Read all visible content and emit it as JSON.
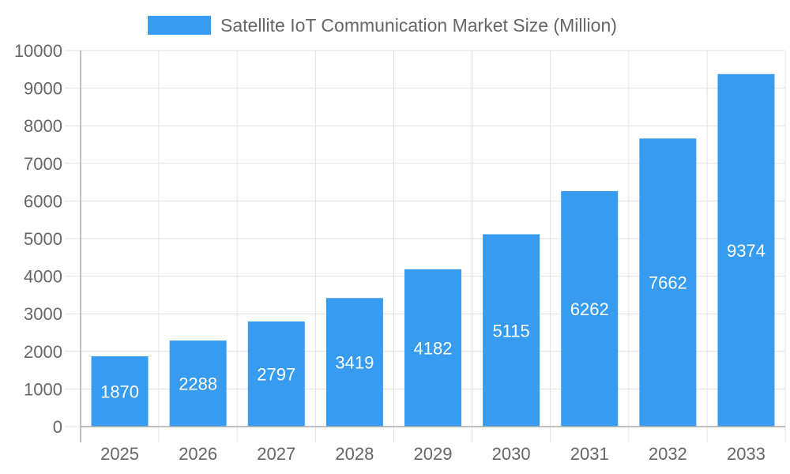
{
  "chart_data": {
    "type": "bar",
    "title": "",
    "xlabel": "",
    "ylabel": "",
    "categories": [
      "2025",
      "2026",
      "2027",
      "2028",
      "2029",
      "2030",
      "2031",
      "2032",
      "2033"
    ],
    "series": [
      {
        "name": "Satellite IoT Communication Market Size (Million)",
        "values": [
          1870,
          2288,
          2797,
          3419,
          4182,
          5115,
          6262,
          7662,
          9374
        ],
        "color": "#379cf0"
      }
    ],
    "ylim": [
      0,
      10000
    ],
    "yticks": [
      0,
      1000,
      2000,
      3000,
      4000,
      5000,
      6000,
      7000,
      8000,
      9000,
      10000
    ],
    "grid": true,
    "legend_position": "top",
    "data_labels": "inside-center"
  }
}
